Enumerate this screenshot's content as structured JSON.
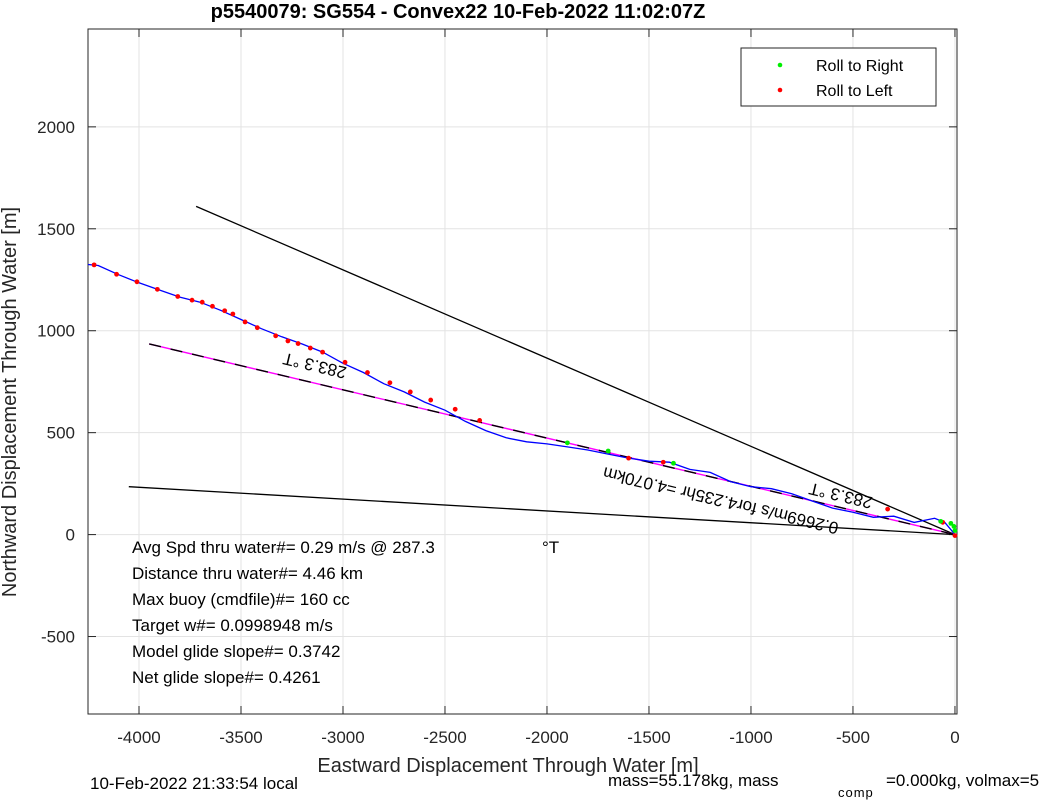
{
  "chart_data": {
    "type": "line",
    "title": "p5540079: SG554 - Convex22 10-Feb-2022 11:02:07Z",
    "xlabel": "Eastward Displacement Through Water [m]",
    "ylabel": "Northward Displacement Through Water [m]",
    "xlim": [
      -4250,
      10
    ],
    "ylim": [
      -880,
      2480
    ],
    "grid": true,
    "xticks": [
      -4000,
      -3500,
      -3000,
      -2500,
      -2000,
      -1500,
      -1000,
      -500,
      0
    ],
    "yticks": [
      -500,
      0,
      500,
      1000,
      1500,
      2000
    ],
    "legend": {
      "position": "top-right",
      "entries": [
        {
          "label": "Roll to Right",
          "color": "#00ee00"
        },
        {
          "label": "Roll to Left",
          "color": "#ff0000"
        }
      ]
    },
    "colors": {
      "track": "#0000ff",
      "model": "#ff00ff",
      "reference": "#000000"
    },
    "track": {
      "x": [
        -4250,
        -4200,
        -4100,
        -4000,
        -3900,
        -3800,
        -3700,
        -3600,
        -3500,
        -3400,
        -3300,
        -3200,
        -3100,
        -3000,
        -2900,
        -2800,
        -2700,
        -2600,
        -2500,
        -2400,
        -2300,
        -2200,
        -2100,
        -2000,
        -1900,
        -1800,
        -1700,
        -1600,
        -1500,
        -1400,
        -1300,
        -1200,
        -1100,
        -1000,
        -900,
        -800,
        -700,
        -600,
        -500,
        -400,
        -300,
        -200,
        -100,
        -50,
        0
      ],
      "y": [
        1325,
        1320,
        1275,
        1235,
        1200,
        1165,
        1140,
        1100,
        1055,
        1010,
        970,
        935,
        895,
        840,
        795,
        740,
        700,
        650,
        610,
        555,
        510,
        475,
        455,
        445,
        430,
        415,
        395,
        375,
        360,
        355,
        320,
        305,
        260,
        235,
        225,
        200,
        165,
        130,
        110,
        85,
        90,
        60,
        80,
        60,
        0
      ]
    },
    "model_line": {
      "x": [
        -3950,
        0
      ],
      "y": [
        935,
        0
      ],
      "label": "0.2669m/s for4.235hr =4.070km"
    },
    "reference_lines": [
      {
        "x": [
          -3720,
          0
        ],
        "y": [
          1610,
          0
        ]
      },
      {
        "x": [
          -4050,
          0
        ],
        "y": [
          235,
          0
        ]
      }
    ],
    "roll_right": {
      "x": [
        -1900,
        -1700,
        -1380,
        -70,
        -20,
        -5,
        0
      ],
      "y": [
        450,
        410,
        350,
        65,
        55,
        40,
        20
      ]
    },
    "roll_left": {
      "x": [
        -4220,
        -4110,
        -4010,
        -3910,
        -3810,
        -3740,
        -3690,
        -3640,
        -3580,
        -3540,
        -3480,
        -3420,
        -3330,
        -3270,
        -3220,
        -3160,
        -3100,
        -2990,
        -2880,
        -2770,
        -2670,
        -2570,
        -2450,
        -2330,
        -1600,
        -1430,
        -330,
        -60,
        0
      ],
      "y": [
        1323,
        1277,
        1240,
        1203,
        1168,
        1150,
        1140,
        1120,
        1098,
        1082,
        1043,
        1015,
        975,
        950,
        937,
        915,
        895,
        845,
        795,
        745,
        700,
        660,
        615,
        560,
        375,
        355,
        125,
        60,
        -5
      ]
    },
    "annotations": {
      "heading_label_1": "283.3 °T",
      "heading_label_2": "283.3 °T",
      "stats": [
        {
          "label": "Avg Spd thru water#=  0.29 m/s @ 287.3",
          "unit": "°T"
        },
        {
          "label": "Distance thru water#=  4.46 km"
        },
        {
          "label": "Max buoy (cmdfile)#= 160 cc"
        },
        {
          "label": "Target w#= 0.0998948 m/s"
        },
        {
          "label": "Model glide slope#= 0.3742"
        },
        {
          "label": "Net glide slope#= 0.4261"
        }
      ]
    },
    "footer": {
      "local_time": "10-Feb-2022 21:33:54 local",
      "mass_part1": "mass=55.178kg, mass",
      "mass_subscript": "comp",
      "mass_part2": "=0.000kg, volmax=5"
    }
  }
}
